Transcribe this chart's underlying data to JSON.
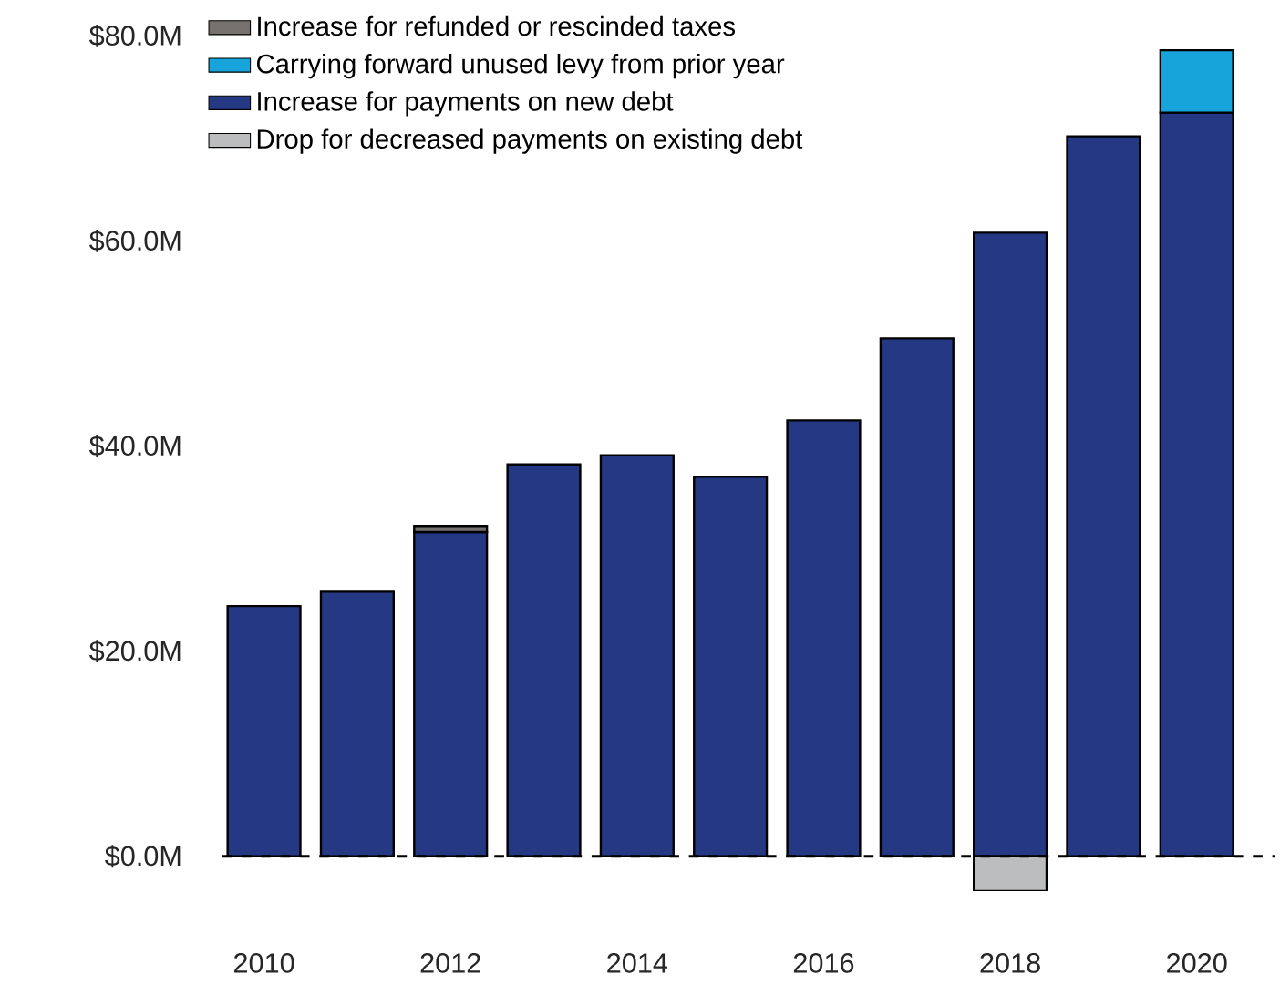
{
  "chart_data": {
    "type": "bar",
    "stacked": true,
    "categories": [
      "2010",
      null,
      "2012",
      null,
      "2014",
      null,
      "2016",
      null,
      "2018",
      null,
      "2020"
    ],
    "series": [
      {
        "name": "Increase for payments on new debt",
        "color": "#253883",
        "values": [
          24.4,
          25.8,
          31.6,
          38.2,
          39.1,
          37.0,
          42.5,
          50.5,
          60.8,
          70.2,
          72.5
        ]
      },
      {
        "name": "Carrying forward unused levy from prior year",
        "color": "#17a4da",
        "values": [
          null,
          null,
          null,
          null,
          null,
          null,
          null,
          null,
          null,
          null,
          6.1
        ]
      },
      {
        "name": "Increase for refunded or rescinded taxes",
        "color": "#76706e",
        "values": [
          null,
          null,
          0.6,
          null,
          null,
          null,
          null,
          null,
          null,
          null,
          null
        ]
      },
      {
        "name": "Drop for decreased payments on existing debt",
        "color": "#bbbdbe",
        "values": [
          null,
          null,
          null,
          null,
          null,
          null,
          null,
          null,
          -3.4,
          null,
          null
        ]
      }
    ],
    "ylim": [
      -3.4,
      80
    ],
    "yticks": [
      {
        "value": 0,
        "label": "$0.0M"
      },
      {
        "value": 20,
        "label": "$20.0M"
      },
      {
        "value": 40,
        "label": "$40.0M"
      },
      {
        "value": 60,
        "label": "$60.0M"
      },
      {
        "value": 80,
        "label": "$80.0M"
      }
    ],
    "ref_lines": [
      {
        "axis": "y",
        "value": 0,
        "line_style": "dashed"
      }
    ],
    "legend": "top left",
    "grid": false
  }
}
